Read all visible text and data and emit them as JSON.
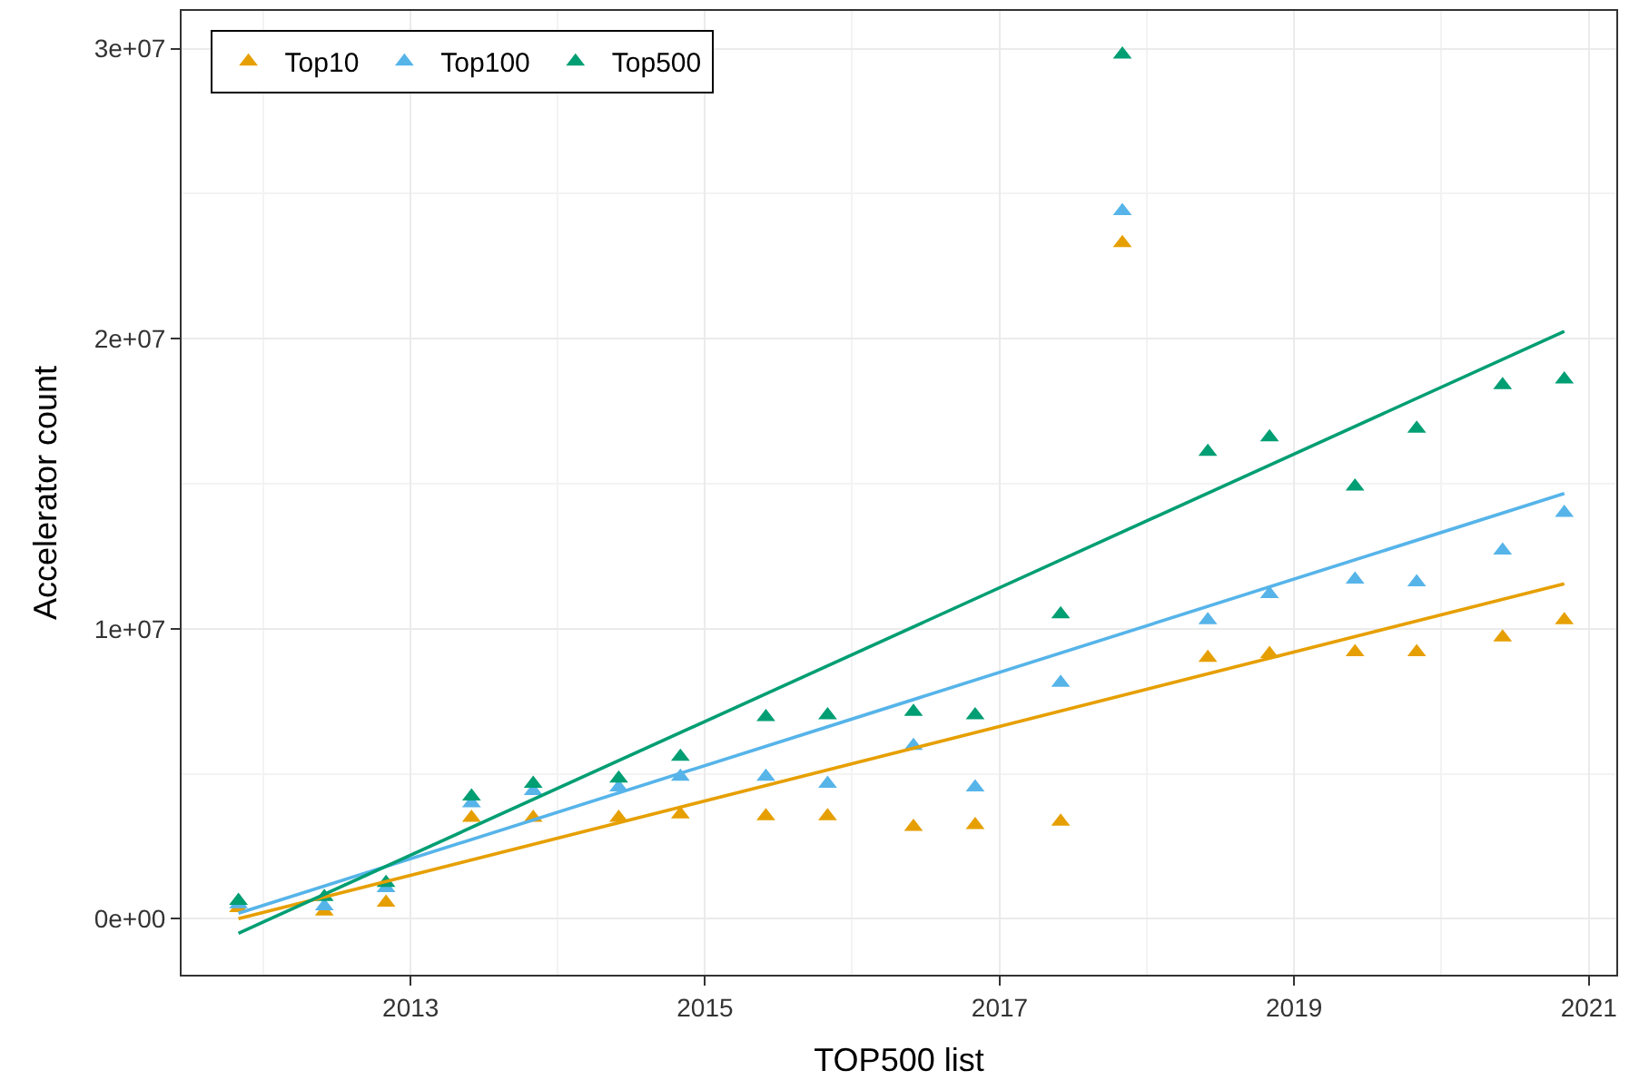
{
  "chart_data": {
    "type": "scatter",
    "xlabel": "TOP500 list",
    "ylabel": "Accelerator count",
    "x": [
      "2011-11",
      "2012-06",
      "2012-11",
      "2013-06",
      "2013-11",
      "2014-06",
      "2014-11",
      "2015-06",
      "2015-11",
      "2016-06",
      "2016-11",
      "2017-06",
      "2017-11",
      "2018-06",
      "2018-11",
      "2019-06",
      "2019-11",
      "2020-06",
      "2020-11"
    ],
    "series": [
      {
        "name": "Top10",
        "color": "#e69f00",
        "values": [
          370000,
          250000,
          560000,
          3480000,
          3480000,
          3480000,
          3600000,
          3540000,
          3540000,
          3170000,
          3230000,
          3350000,
          23300000,
          9000000,
          9130000,
          9190000,
          9190000,
          9700000,
          10300000
        ]
      },
      {
        "name": "Top100",
        "color": "#56b4e9",
        "values": [
          500000,
          430000,
          1060000,
          3980000,
          4410000,
          4530000,
          4900000,
          4900000,
          4660000,
          5960000,
          4530000,
          8140000,
          24400000,
          10300000,
          11200000,
          11700000,
          11600000,
          12700000,
          14000000
        ]
      },
      {
        "name": "Top500",
        "color": "#009e73",
        "values": [
          620000,
          750000,
          1240000,
          4220000,
          4660000,
          4840000,
          5590000,
          6960000,
          7020000,
          7140000,
          7020000,
          10500000,
          29800000,
          16100000,
          16600000,
          14900000,
          16900000,
          18400000,
          18600000
        ]
      },
      {
        "type": "line",
        "marker": "none",
        "color": "#e69f00",
        "x": [
          "2011-11",
          "2020-11"
        ],
        "values": [
          0,
          11550000
        ]
      },
      {
        "type": "line",
        "marker": "none",
        "color": "#56b4e9",
        "x": [
          "2011-11",
          "2020-11"
        ],
        "values": [
          190000,
          14660000
        ]
      },
      {
        "type": "line",
        "marker": "none",
        "color": "#009e73",
        "x": [
          "2011-11",
          "2020-11"
        ],
        "values": [
          -500000,
          20250000
        ]
      }
    ],
    "marker": "triangle",
    "grid": true,
    "legend": "top left",
    "xlim": [
      "2011-06-13",
      "2021-03-10"
    ],
    "xticks": [
      {
        "value": "2013",
        "label": "2013"
      },
      {
        "value": "2015",
        "label": "2015"
      },
      {
        "value": "2017",
        "label": "2017"
      },
      {
        "value": "2019",
        "label": "2019"
      },
      {
        "value": "2021",
        "label": "2021"
      }
    ],
    "ylim": [
      -1930000,
      31300000
    ],
    "yticks": [
      {
        "value": 0,
        "label": "0e+00"
      },
      {
        "value": 10000000,
        "label": "1e+07"
      },
      {
        "value": 20000000,
        "label": "2e+07"
      },
      {
        "value": 30000000,
        "label": "3e+07"
      }
    ]
  }
}
